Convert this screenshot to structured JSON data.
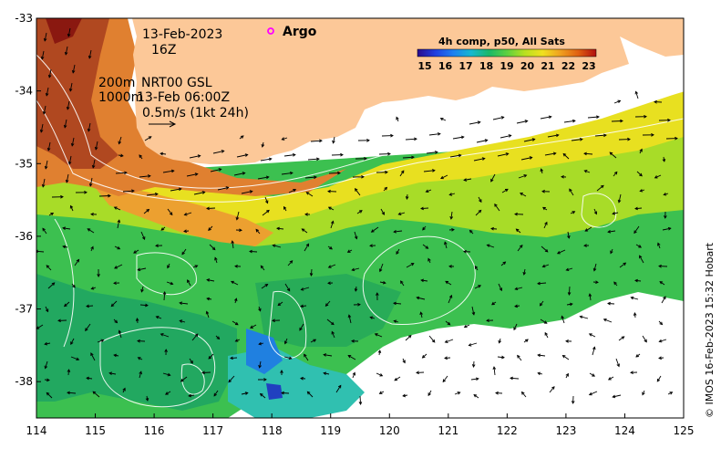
{
  "map": {
    "date_label": "13-Feb-2023",
    "time_label": "16Z",
    "argo_label": "Argo",
    "contour_label_1": "200m",
    "product_label": "NRT00 GSL",
    "contour_label_2": "1000m",
    "product_time": "13-Feb 06:00Z",
    "scale_label": "0.5m/s (1kt 24h)",
    "credit": "© IMOS 16-Feb-2023 15:32 Hobart",
    "colors": {
      "land": "#fcc898",
      "nodata": "#ffffff",
      "argo_marker": "#ff00ff",
      "arrow": "#000000",
      "contour": "#ffffff"
    }
  },
  "chart_data": {
    "type": "heatmap",
    "x_axis": {
      "ticks": [
        "114",
        "115",
        "116",
        "117",
        "118",
        "119",
        "120",
        "121",
        "122",
        "123",
        "124",
        "125"
      ],
      "range": [
        114,
        125
      ]
    },
    "y_axis": {
      "ticks": [
        "-33",
        "-34",
        "-35",
        "-36",
        "-37",
        "-38"
      ],
      "range": [
        -38.5,
        -33
      ]
    },
    "colorbar": {
      "title": "4h comp, p50, All Sats",
      "ticks": [
        "15",
        "16",
        "17",
        "18",
        "19",
        "20",
        "21",
        "22",
        "23"
      ],
      "range": [
        15,
        23
      ],
      "colors": [
        "#2a0a8c",
        "#1f3fe0",
        "#1e7ff0",
        "#15b8d0",
        "#18b868",
        "#5cd040",
        "#b8e020",
        "#f0e020",
        "#f0a020",
        "#e06010",
        "#b01010"
      ]
    },
    "argo_floats": [
      {
        "lon": 118.0,
        "lat": -33.2
      }
    ]
  }
}
